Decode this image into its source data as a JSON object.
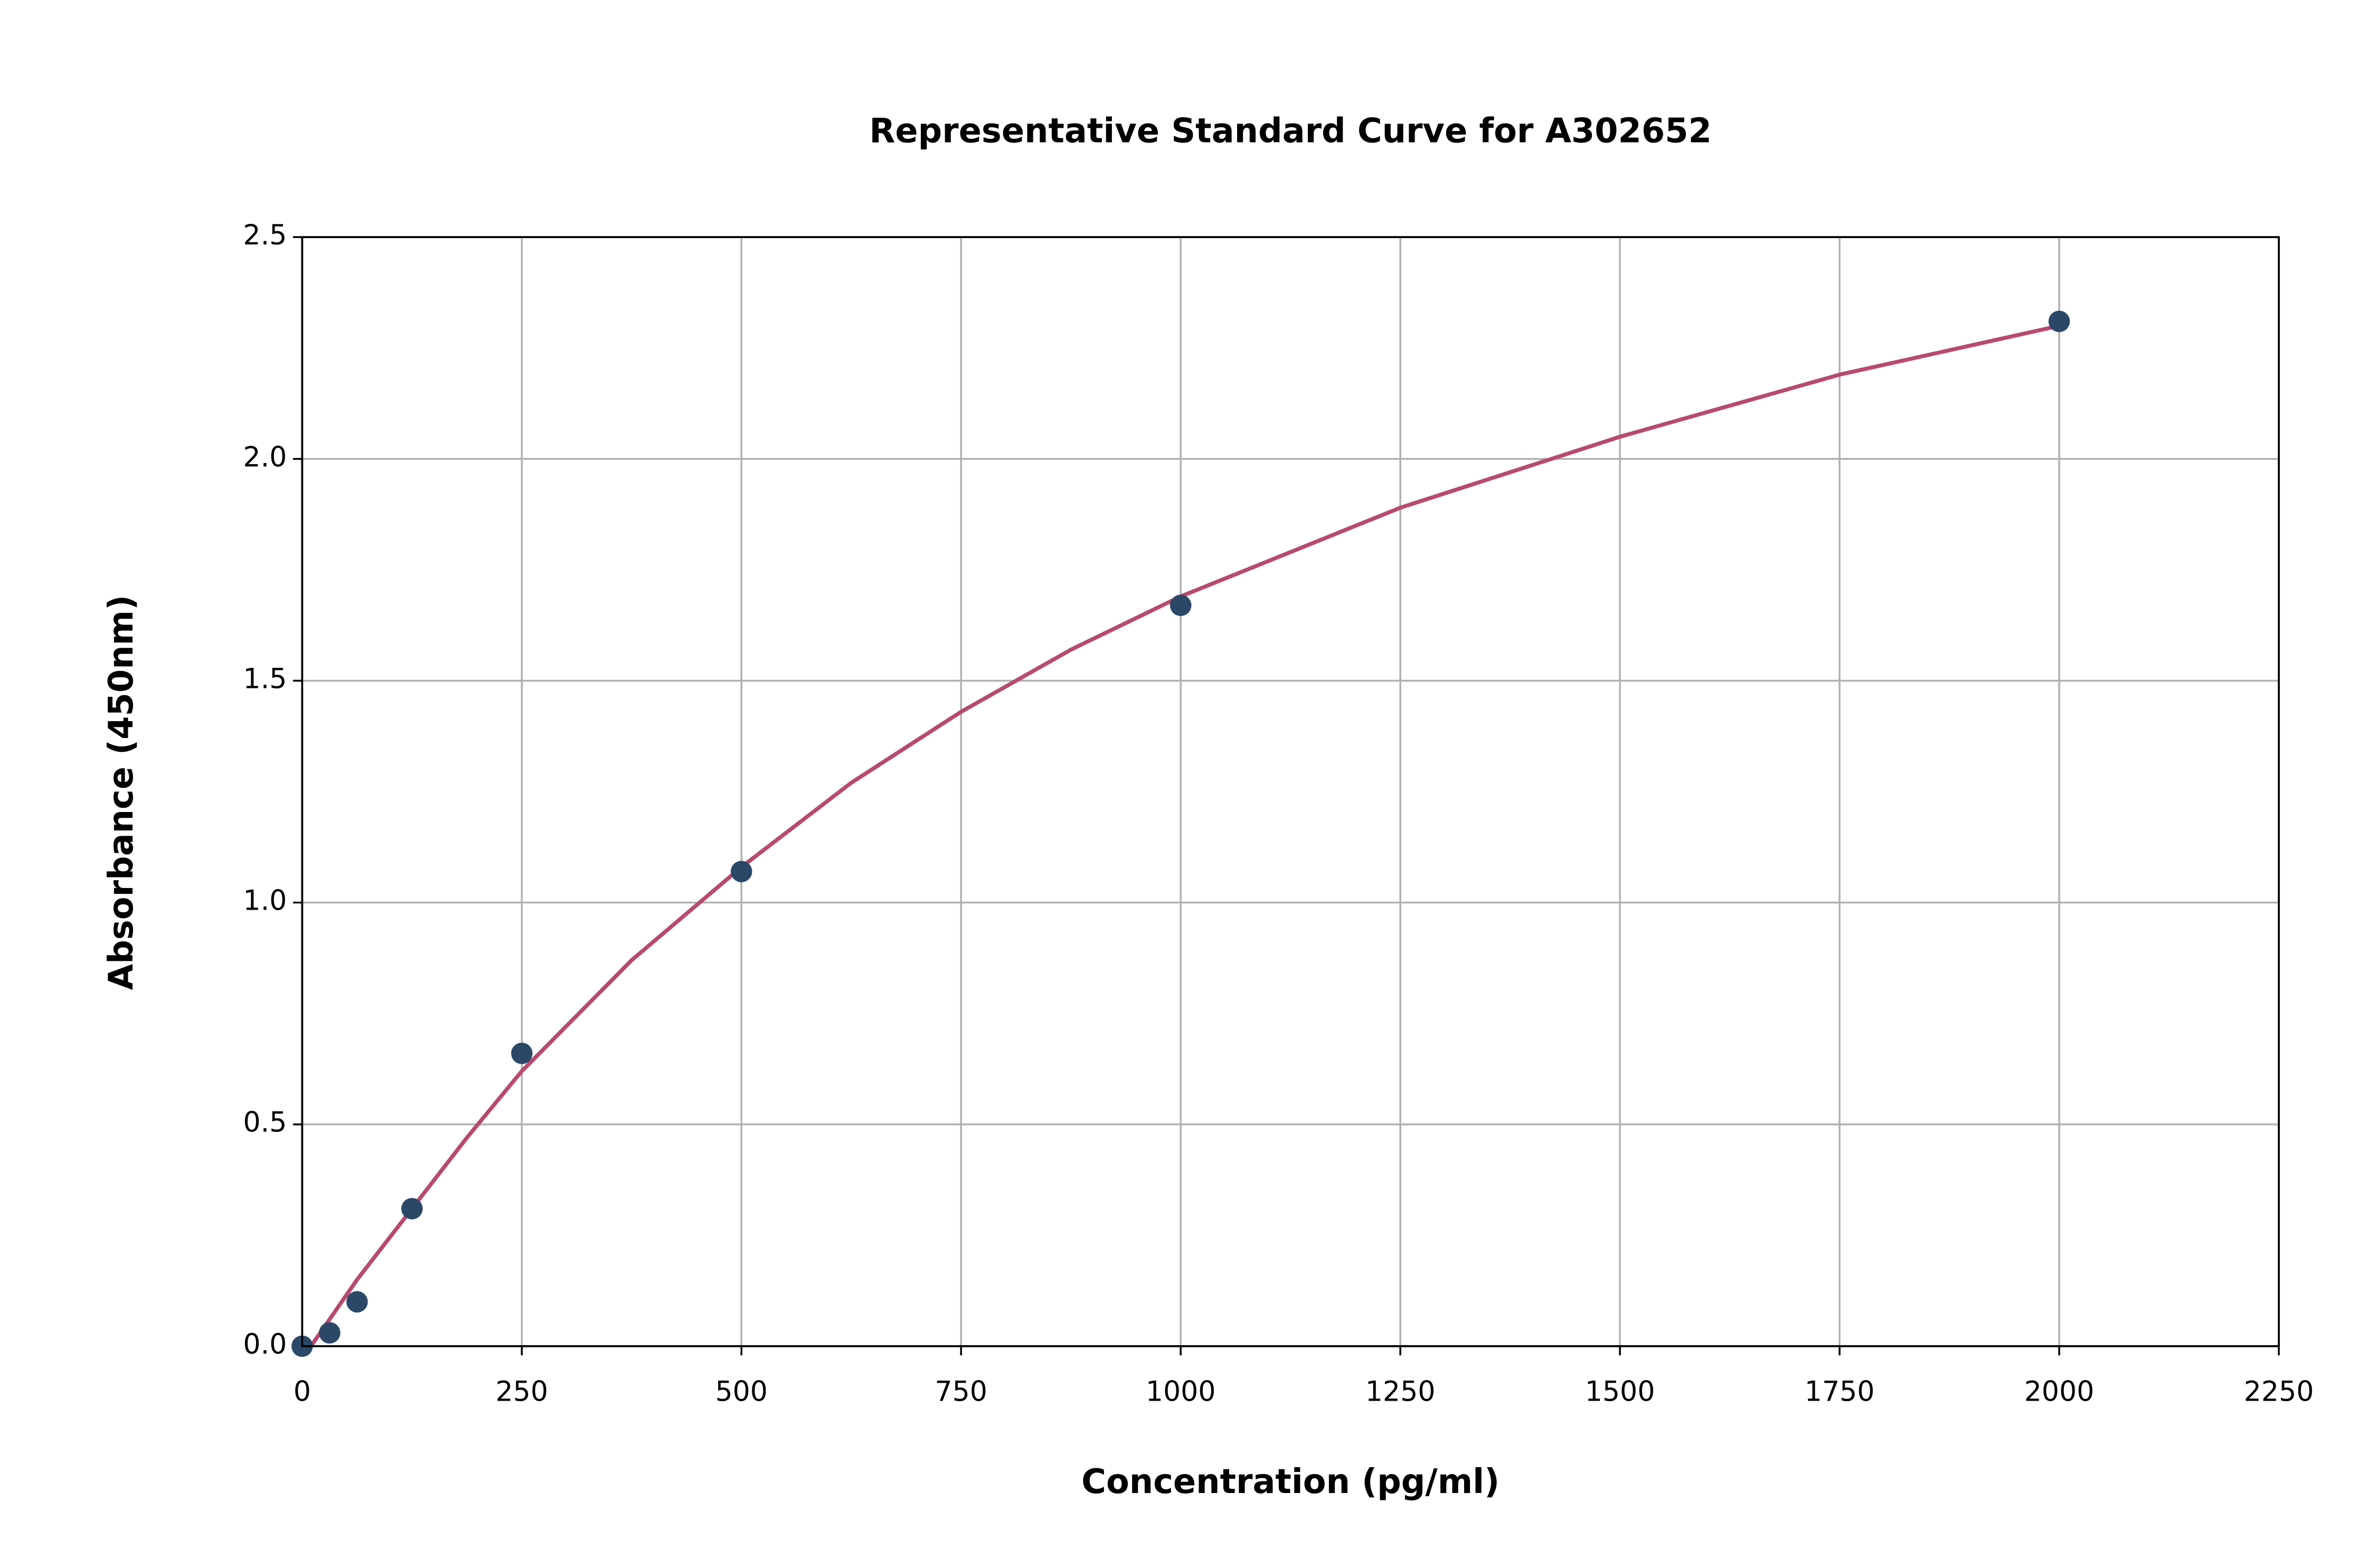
{
  "chart_data": {
    "type": "scatter",
    "title": "Representative Standard Curve for A302652",
    "x_label": "Concentration (pg/ml)",
    "y_label": "Absorbance (450nm)",
    "xlim": [
      0,
      2250
    ],
    "ylim": [
      0,
      2.5
    ],
    "xticks": [
      0,
      250,
      500,
      750,
      1000,
      1250,
      1500,
      1750,
      2000,
      2250
    ],
    "yticks": [
      {
        "value": 0,
        "label": "0.0"
      },
      0.5,
      {
        "value": 1,
        "label": "1.0"
      },
      1.5,
      {
        "value": 2,
        "label": "2.0"
      },
      2.5
    ],
    "grid": true,
    "series": [
      {
        "type": "scatter",
        "color": "#2b4869",
        "x": [
          0,
          31.25,
          62.5,
          125,
          250,
          500,
          1000,
          2000
        ],
        "values": [
          0,
          0.03,
          0.1,
          0.31,
          0.66,
          1.07,
          1.67,
          2.31
        ]
      },
      {
        "type": "line",
        "color": "#b84a6e",
        "x": [
          10,
          62.5,
          125,
          187.5,
          250,
          375,
          500,
          625,
          750,
          875,
          1000,
          1250,
          1500,
          1750,
          2000
        ],
        "values": [
          0,
          0.15,
          0.31,
          0.47,
          0.62,
          0.87,
          1.08,
          1.27,
          1.43,
          1.57,
          1.69,
          1.89,
          2.05,
          2.19,
          2.3
        ]
      }
    ]
  }
}
